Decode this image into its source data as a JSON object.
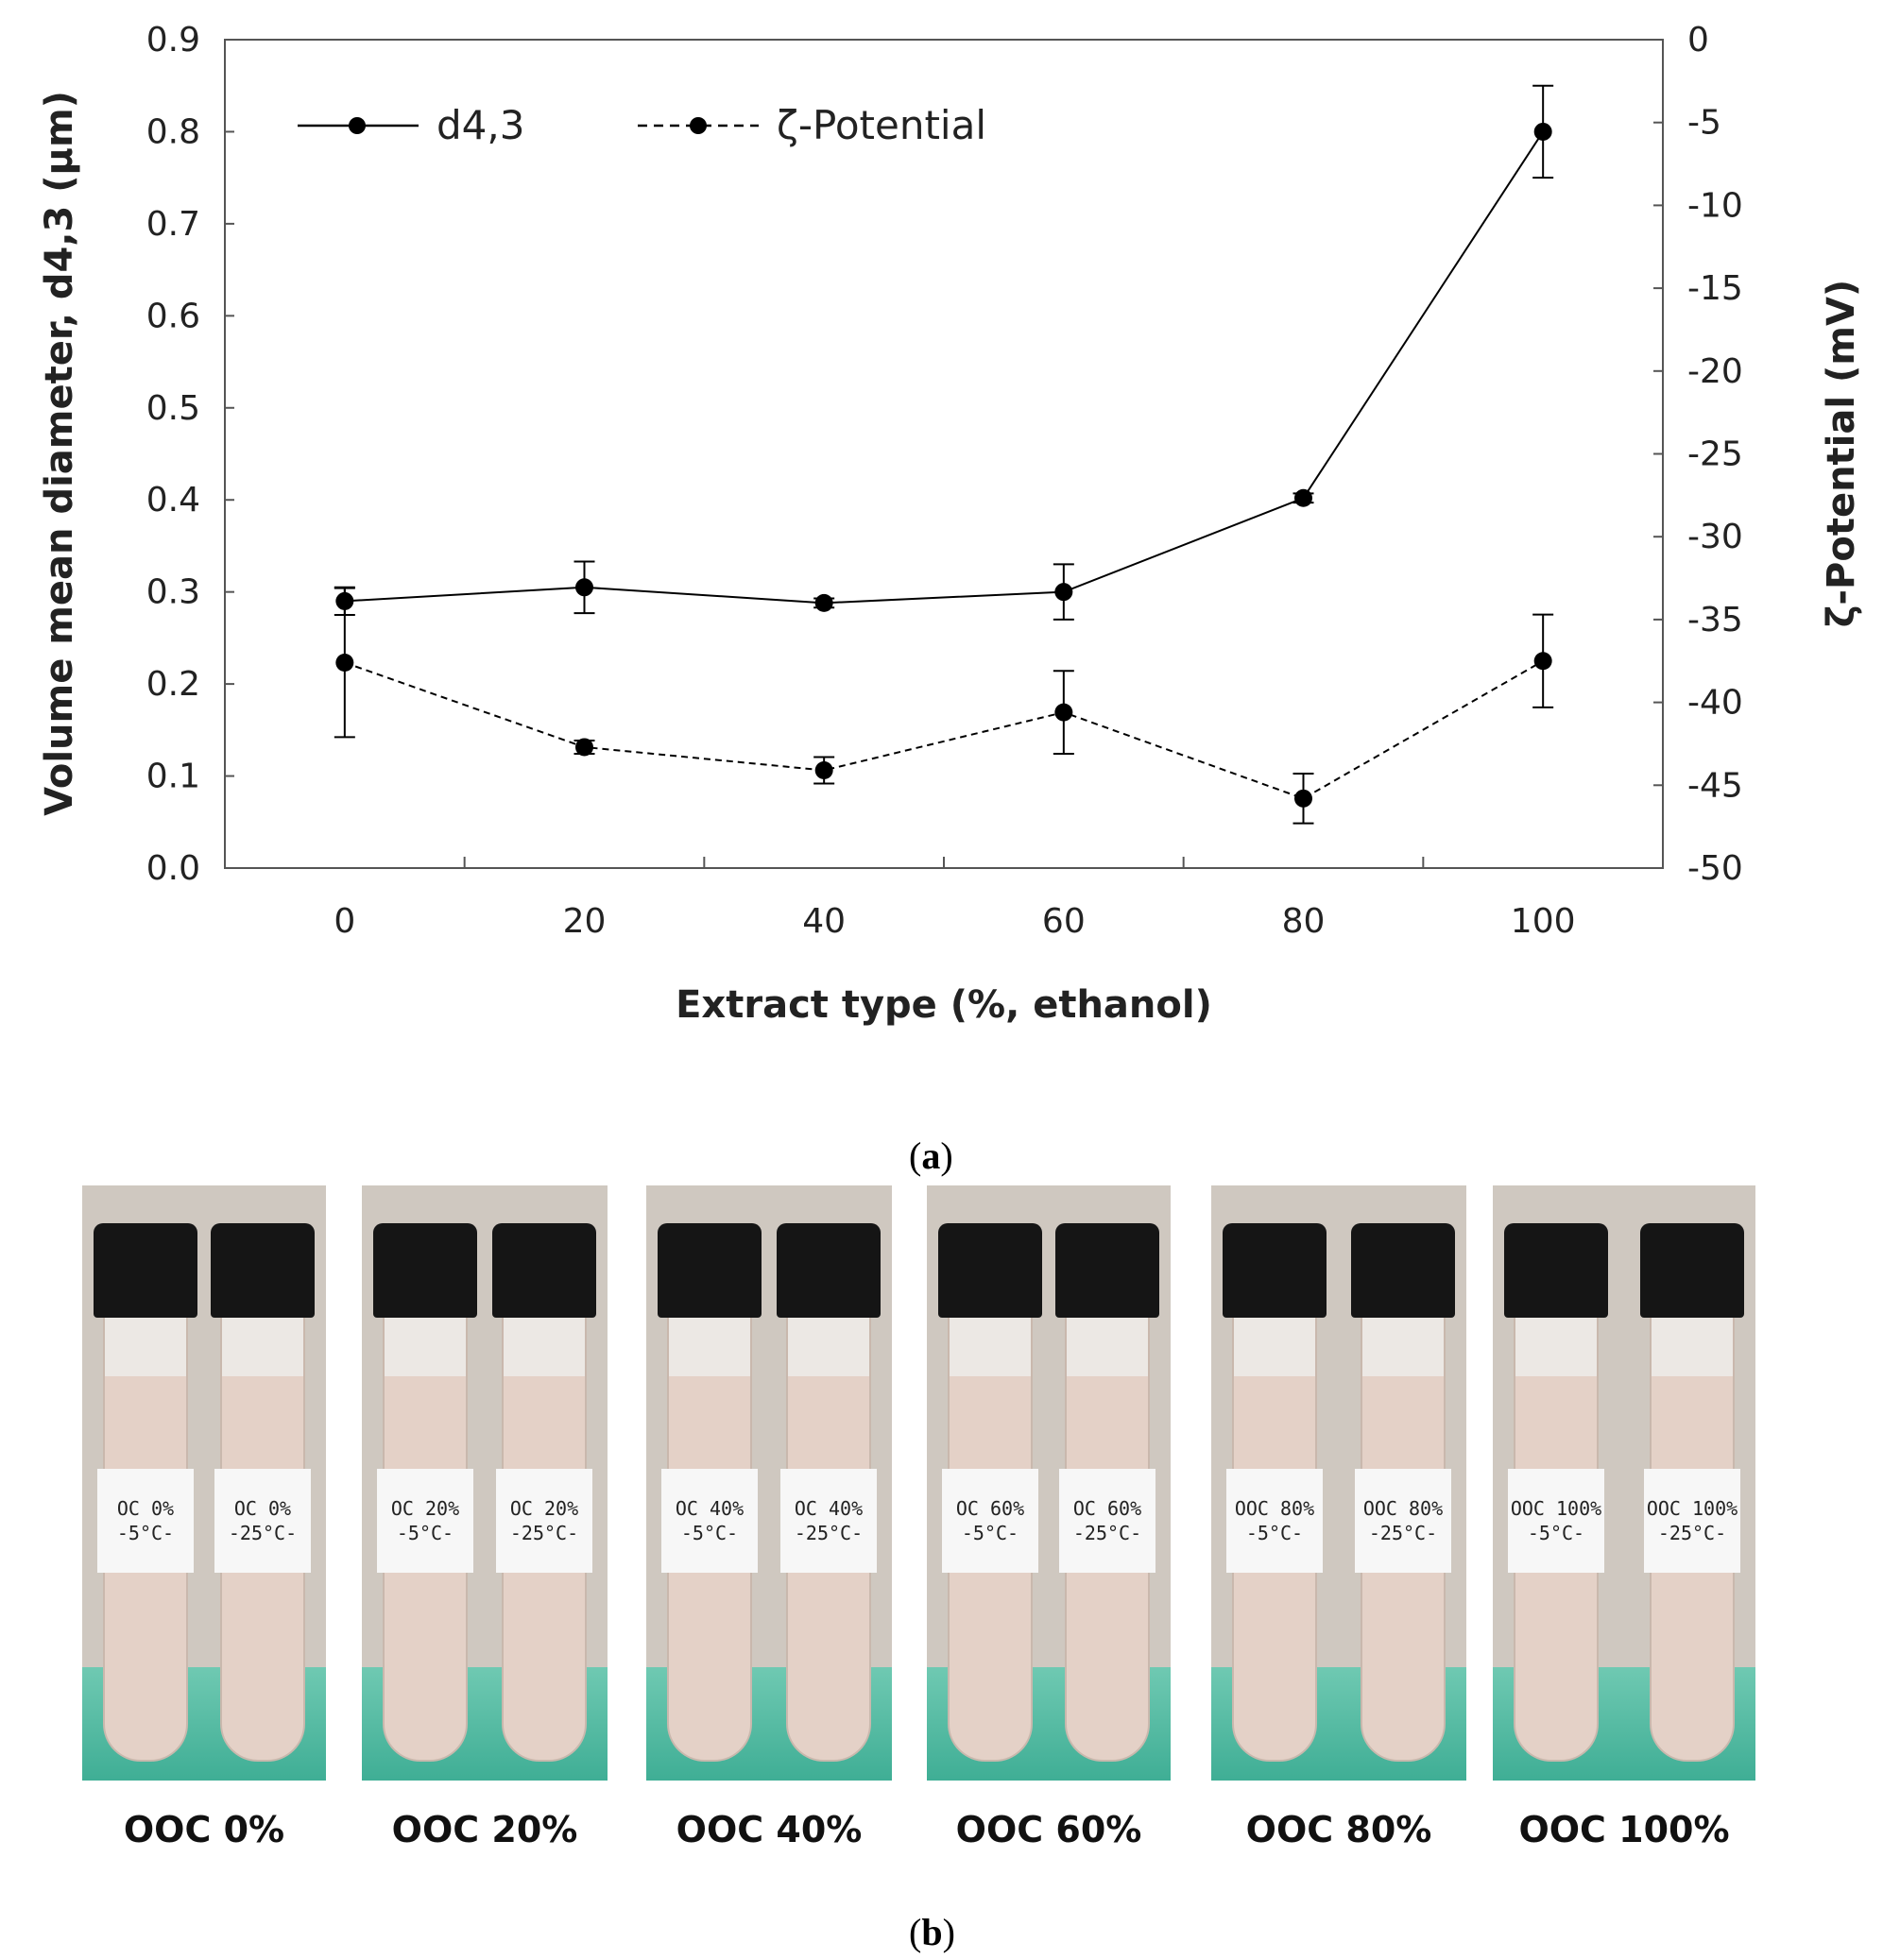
{
  "chart_data": {
    "type": "line",
    "x": [
      0,
      20,
      40,
      60,
      80,
      100
    ],
    "xlabel": "Extract type (%, ethanol)",
    "xticks": [
      "0",
      "20",
      "40",
      "60",
      "80",
      "100"
    ],
    "xlim": [
      -10,
      110
    ],
    "ylabel_left": "Volume mean diameter, d4,3 (μm)",
    "ylim_left": [
      0.0,
      0.9
    ],
    "yticks_left": [
      "0.0",
      "0.1",
      "0.2",
      "0.3",
      "0.4",
      "0.5",
      "0.6",
      "0.7",
      "0.8",
      "0.9"
    ],
    "ylabel_right": "ζ-Potential (mV)",
    "ylim_right": [
      -50,
      0
    ],
    "yticks_right": [
      "0",
      "-5",
      "-10",
      "-15",
      "-20",
      "-25",
      "-30",
      "-35",
      "-40",
      "-45",
      "-50"
    ],
    "legend_position": "top-left",
    "grid": false,
    "series": [
      {
        "name": "d4,3",
        "axis": "left",
        "line_style": "solid",
        "values": [
          0.29,
          0.305,
          0.288,
          0.3,
          0.402,
          0.8
        ],
        "errors": [
          0.015,
          0.028,
          0.005,
          0.03,
          0.005,
          0.05
        ]
      },
      {
        "name": "ζ-Potential",
        "axis": "right",
        "line_style": "dashed",
        "values": [
          -37.6,
          -42.7,
          -44.1,
          -40.6,
          -45.8,
          -37.5
        ],
        "errors": [
          4.5,
          0.4,
          0.8,
          2.5,
          1.5,
          2.8
        ]
      }
    ]
  },
  "panel_labels": {
    "a": "a",
    "b": "b"
  },
  "photos": [
    {
      "caption": "OOC 0%",
      "tubes": [
        {
          "line1": "OC 0%",
          "line2": "-5°C-"
        },
        {
          "line1": "OC 0%",
          "line2": "-25°C-"
        }
      ]
    },
    {
      "caption": "OOC 20%",
      "tubes": [
        {
          "line1": "OC 20%",
          "line2": "-5°C-"
        },
        {
          "line1": "OC 20%",
          "line2": "-25°C-"
        }
      ]
    },
    {
      "caption": "OOC 40%",
      "tubes": [
        {
          "line1": "OC 40%",
          "line2": "-5°C-"
        },
        {
          "line1": "OC 40%",
          "line2": "-25°C-"
        }
      ]
    },
    {
      "caption": "OOC 60%",
      "tubes": [
        {
          "line1": "OC 60%",
          "line2": "-5°C-"
        },
        {
          "line1": "OC 60%",
          "line2": "-25°C-"
        }
      ]
    },
    {
      "caption": "OOC 80%",
      "tubes": [
        {
          "line1": "OOC 80%",
          "line2": "-5°C-"
        },
        {
          "line1": "OOC 80%",
          "line2": "-25°C-"
        }
      ]
    },
    {
      "caption": "OOC 100%",
      "tubes": [
        {
          "line1": "OOC 100%",
          "line2": "-5°C-"
        },
        {
          "line1": "OOC 100%",
          "line2": "-25°C-"
        }
      ]
    }
  ]
}
